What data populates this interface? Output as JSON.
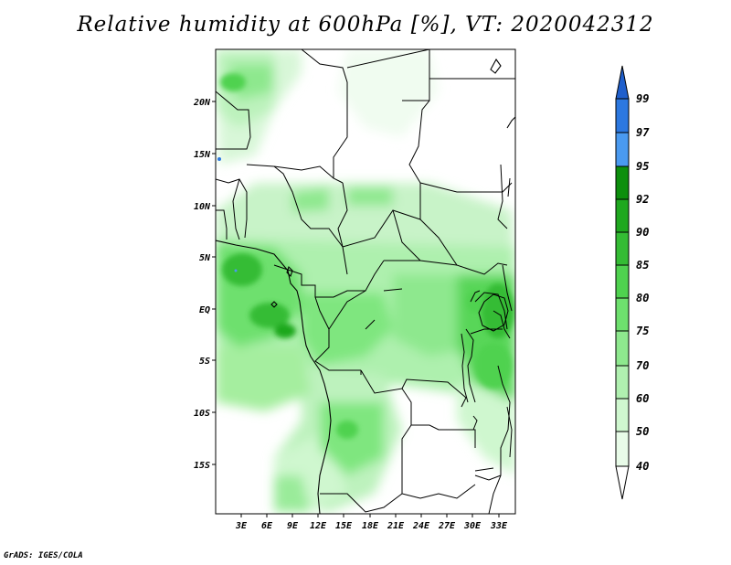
{
  "title": "Relative humidity at 600hPa [%], VT: 2020042312",
  "credit": "GrADS: IGES/COLA",
  "map": {
    "lat_labels": [
      "20N",
      "15N",
      "10N",
      "5N",
      "EQ",
      "5S",
      "10S",
      "15S"
    ],
    "lon_labels": [
      "3E",
      "6E",
      "9E",
      "12E",
      "15E",
      "18E",
      "21E",
      "24E",
      "27E",
      "30E",
      "33E"
    ]
  },
  "colorbar": {
    "labels": [
      "99",
      "97",
      "95",
      "92",
      "90",
      "85",
      "80",
      "75",
      "70",
      "60",
      "50",
      "40"
    ],
    "colors": [
      "#1f5fcc",
      "#2c78e0",
      "#4a9af0",
      "#0d8f0d",
      "#1fa81f",
      "#34bc34",
      "#4fd24f",
      "#6ee06e",
      "#8ee88e",
      "#b0f0b0",
      "#cff7cf",
      "#e8fbe8"
    ]
  }
}
